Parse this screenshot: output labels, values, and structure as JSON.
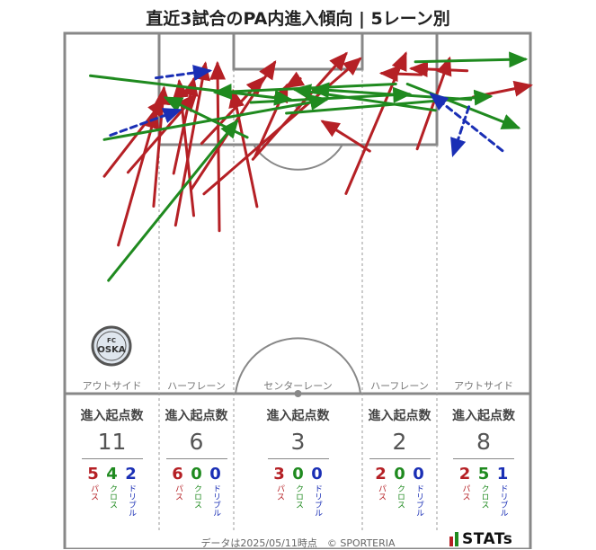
{
  "title": "直近3試合のPA内進入傾向 | 5レーン別",
  "lanes": [
    {
      "name": "アウトサイド",
      "stats_heading": "進入起点数",
      "total": "11",
      "pass": "5",
      "cross": "4",
      "dribble": "2"
    },
    {
      "name": "ハーフレーン",
      "stats_heading": "進入起点数",
      "total": "6",
      "pass": "6",
      "cross": "0",
      "dribble": "0"
    },
    {
      "name": "センターレーン",
      "stats_heading": "進入起点数",
      "total": "3",
      "pass": "3",
      "cross": "0",
      "dribble": "0"
    },
    {
      "name": "ハーフレーン",
      "stats_heading": "進入起点数",
      "total": "2",
      "pass": "2",
      "cross": "0",
      "dribble": "0"
    },
    {
      "name": "アウトサイド",
      "stats_heading": "進入起点数",
      "total": "8",
      "pass": "2",
      "cross": "5",
      "dribble": "1"
    }
  ],
  "legend_labels": {
    "pass": "パス",
    "cross": "クロス",
    "dribble": "ドリブル"
  },
  "colors": {
    "pass": "#b52025",
    "cross": "#1f8a1f",
    "dribble": "#1a2fb5",
    "pitch_line": "#888888",
    "lane_divider": "#999999"
  },
  "footer": "データは2025/05/11時点　© SPORTERIA",
  "brand": "STATs",
  "logo_text": "FC OSAKA",
  "chart_data": {
    "type": "scatter",
    "note_units": "pitch coordinates: x 0–100 across the width (left→right), y 0–100 from the goal line (0) down to the halfway line (100)",
    "series": [
      {
        "name": "パス",
        "arrows": [
          [
            8.5,
            39.7,
            21.3,
            18.4
          ],
          [
            11.5,
            58.8,
            19.6,
            21.9
          ],
          [
            13.6,
            38.6,
            28.1,
            17.1
          ],
          [
            19.1,
            48.0,
            21.3,
            15.3
          ],
          [
            27.7,
            50.6,
            24.6,
            13.4
          ],
          [
            33.2,
            54.8,
            32.8,
            8.4
          ],
          [
            40.4,
            35.0,
            60.4,
            5.7
          ],
          [
            29.9,
            44.6,
            63.4,
            7.1
          ],
          [
            40.9,
            34.1,
            47.7,
            14.5
          ],
          [
            27.2,
            43.3,
            45.1,
            8.1
          ],
          [
            29.4,
            30.6,
            42.6,
            12.5
          ],
          [
            50.6,
            12.6,
            47.7,
            14.9
          ],
          [
            65.5,
            32.7,
            55.4,
            24.5
          ],
          [
            60.4,
            44.5,
            73.2,
            5.7
          ],
          [
            75.7,
            32.1,
            82.6,
            7.1
          ],
          [
            76.6,
            11.5,
            68.1,
            11.1
          ],
          [
            86.4,
            10.4,
            74.5,
            9.8
          ],
          [
            87.7,
            17.7,
            100,
            14.5
          ],
          [
            23.4,
            38.9,
            27.7,
            12.8
          ],
          [
            23.8,
            53.3,
            30.2,
            8.5
          ],
          [
            41.3,
            48.1,
            36.2,
            16.1
          ]
        ]
      },
      {
        "name": "クロス",
        "arrows": [
          [
            9.4,
            68.6,
            37.0,
            24.4
          ],
          [
            8.5,
            29.5,
            56.2,
            18.4
          ],
          [
            40.0,
            19.2,
            74.0,
            16.9
          ],
          [
            5.5,
            11.8,
            48.5,
            18.4
          ],
          [
            47.6,
            22.2,
            91.4,
            17.5
          ],
          [
            79.6,
            21.4,
            49.4,
            15.6
          ],
          [
            87.2,
            18.4,
            53.3,
            15.5
          ],
          [
            71.1,
            14.1,
            32.4,
            16.4
          ],
          [
            73.6,
            14.1,
            97.4,
            26.2
          ],
          [
            75.3,
            7.9,
            98.9,
            7.2
          ],
          [
            39.2,
            28.9,
            21.7,
            17.9
          ]
        ]
      },
      {
        "name": "ドリブル",
        "arrows": [
          [
            9.8,
            28.3,
            24.7,
            21.3
          ],
          [
            19.6,
            12.4,
            31.1,
            10.4
          ],
          [
            86.8,
            20.4,
            83.4,
            33.7
          ],
          [
            94.0,
            32.6,
            78.7,
            16.9
          ]
        ]
      }
    ]
  }
}
